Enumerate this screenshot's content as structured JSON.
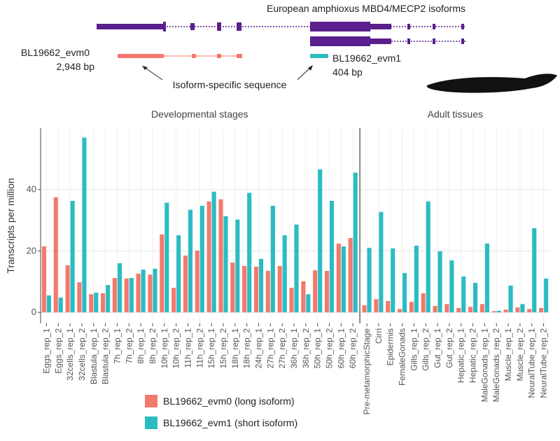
{
  "diagram": {
    "title": "European amphioxus MBD4/MECP2 isoforms",
    "long_name": "BL19662_evm0",
    "long_length": "2,948 bp",
    "short_name": "BL19662_evm1",
    "short_length": "404 bp",
    "annotation": "Isoform-specific sequence"
  },
  "chart_data": {
    "type": "bar",
    "ylabel": "Transcripts per million",
    "ylim": [
      -3.6,
      60
    ],
    "yticks": [
      0,
      20,
      40
    ],
    "grid": true,
    "legend": [
      {
        "name": "BL19662_evm0 (long isoform)",
        "color": "#f27a6c"
      },
      {
        "name": "BL19662_evm1 (short isoform)",
        "color": "#2bbcc3"
      }
    ],
    "panels": [
      {
        "title": "Developmental stages",
        "categories": [
          "Eggs_rep_1",
          "Eggs_rep_2",
          "32cells_rep_1",
          "32cells_rep_2",
          "Blastula_rep_1",
          "Blastula_rep_2",
          "7h_rep_1",
          "7h_rep_2",
          "8h_rep_1",
          "8h_rep_2",
          "10h_rep_1",
          "10h_rep_2",
          "11h_rep_1",
          "11h_rep_2",
          "15h_rep_1",
          "15h_rep_2",
          "18h_rep_1",
          "18h_rep_2",
          "24h_rep_1",
          "27h_rep_1",
          "27h_rep_2",
          "36h_rep_1",
          "36h_rep_2",
          "50h_rep_1",
          "50h_rep_2",
          "60h_rep_1",
          "60h_rep_2"
        ],
        "series": [
          {
            "values": [
              21.5,
              37.5,
              15.3,
              9.8,
              5.9,
              6.2,
              11.2,
              11.0,
              12.6,
              12.3,
              25.4,
              8.0,
              18.5,
              20.1,
              36.1,
              36.8,
              16.2,
              15.1,
              14.9,
              13.5,
              15.1,
              8.0,
              10.1,
              13.7,
              13.5,
              22.4,
              24.2
            ]
          },
          {
            "values": [
              5.5,
              4.8,
              36.3,
              56.9,
              6.4,
              8.9,
              16.0,
              11.2,
              13.9,
              14.2,
              35.7,
              25.1,
              33.4,
              34.7,
              39.3,
              31.3,
              30.2,
              38.9,
              17.4,
              34.7,
              25.1,
              28.6,
              5.9,
              46.6,
              36.3,
              21.5,
              45.5
            ]
          }
        ]
      },
      {
        "title": "Adult tissues",
        "categories": [
          "Pre-metamorphicStage",
          "Cirri",
          "Epidermis",
          "FemaleGonads",
          "Gills_rep_1",
          "Gills_rep_2",
          "Gut_rep_1",
          "Gut_rep_2",
          "Hepatic_rep_1",
          "Hepatic_rep_2",
          "MaleGonads_rep_1",
          "MaleGonads_rep_2",
          "Muscle_rep_1",
          "Muscle_rep_2",
          "NeuralTube_rep_1",
          "NeuralTube_rep_2"
        ],
        "series": [
          {
            "values": [
              2.3,
              4.3,
              3.7,
              1.1,
              3.4,
              6.2,
              2.1,
              2.7,
              1.4,
              1.8,
              2.7,
              0.4,
              0.9,
              1.6,
              1.1,
              1.4
            ]
          },
          {
            "values": [
              21.0,
              32.7,
              20.8,
              12.8,
              21.7,
              36.1,
              19.9,
              16.9,
              11.7,
              9.6,
              22.4,
              0.5,
              8.7,
              2.7,
              27.4,
              11.0
            ]
          }
        ]
      }
    ]
  }
}
